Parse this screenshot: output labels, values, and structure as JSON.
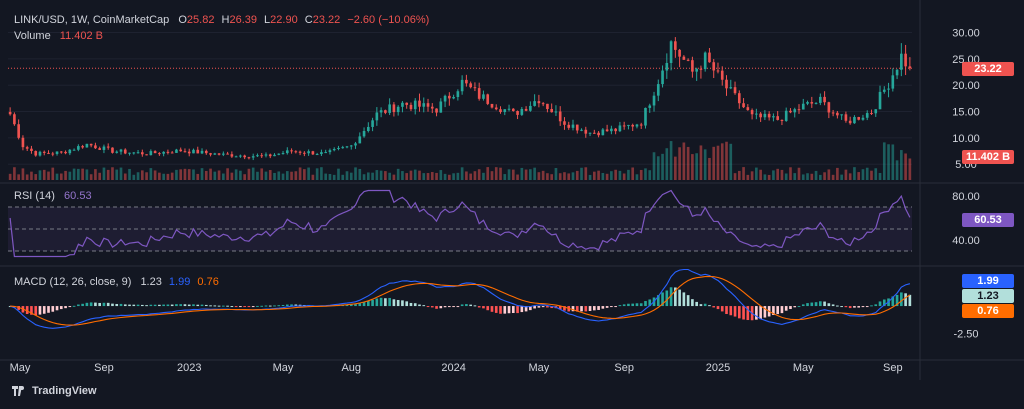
{
  "header": {
    "symbol": "LINK/USD, 1W, CoinMarketCap",
    "o_label": "O",
    "o": "25.82",
    "h_label": "H",
    "h": "26.39",
    "l_label": "L",
    "l": "22.90",
    "c_label": "C",
    "c": "23.22",
    "change": "−2.60 (−10.06%)",
    "volume_label": "Volume",
    "volume": "11.402 B",
    "rsi_label": "RSI (14)",
    "rsi": "60.53",
    "macd_label": "MACD (12, 26, close, 9)",
    "macd_hist": "1.23",
    "macd_line": "1.99",
    "macd_signal": "0.76"
  },
  "tags": {
    "price": "23.22",
    "volume": "11.402 B",
    "rsi": "60.53",
    "macd_line": "1.99",
    "macd_hist": "1.23",
    "macd_signal": "0.76"
  },
  "brand": "TradingView",
  "colors": {
    "up": "#26a69a",
    "down": "#ef5350",
    "rsi": "#7e57c2",
    "macd_line": "#2962ff",
    "macd_signal": "#ff6d00"
  },
  "chart_data": {
    "type": "candlestick",
    "symbol": "LINK/USD",
    "interval": "1W",
    "x_ticks": [
      "May",
      "Sep",
      "2023",
      "May",
      "Aug",
      "2024",
      "May",
      "Sep",
      "2025",
      "May",
      "Sep"
    ],
    "price_axis": [
      "5.00",
      "10.00",
      "15.00",
      "20.00",
      "25.00",
      "30.00"
    ],
    "price_range": [
      2,
      32
    ],
    "last_close": 23.22,
    "rsi_axis": [
      "40.00",
      "80.00"
    ],
    "rsi_range": [
      20,
      90
    ],
    "macd_axis": [
      "-2.50"
    ],
    "macd_range": [
      -4.5,
      3.5
    ],
    "anchors": [
      [
        0,
        14.5
      ],
      [
        3,
        8.5
      ],
      [
        6,
        7.0
      ],
      [
        12,
        7.2
      ],
      [
        18,
        8.8
      ],
      [
        24,
        7.5
      ],
      [
        32,
        7.0
      ],
      [
        40,
        7.6
      ],
      [
        50,
        6.8
      ],
      [
        60,
        6.5
      ],
      [
        66,
        7.5
      ],
      [
        74,
        7.0
      ],
      [
        80,
        8.5
      ],
      [
        86,
        14.5
      ],
      [
        92,
        16.5
      ],
      [
        100,
        15.5
      ],
      [
        106,
        20.5
      ],
      [
        110,
        18.0
      ],
      [
        118,
        14.5
      ],
      [
        124,
        17.5
      ],
      [
        130,
        13.0
      ],
      [
        136,
        11.0
      ],
      [
        142,
        11.5
      ],
      [
        148,
        13.0
      ],
      [
        152,
        21.0
      ],
      [
        155,
        28.0
      ],
      [
        160,
        22.5
      ],
      [
        163,
        25.0
      ],
      [
        168,
        19.5
      ],
      [
        174,
        14.0
      ],
      [
        180,
        13.5
      ],
      [
        186,
        16.0
      ],
      [
        190,
        17.0
      ],
      [
        196,
        13.0
      ],
      [
        202,
        15.0
      ],
      [
        206,
        20.5
      ],
      [
        209,
        25.5
      ],
      [
        211,
        23.22
      ]
    ]
  }
}
